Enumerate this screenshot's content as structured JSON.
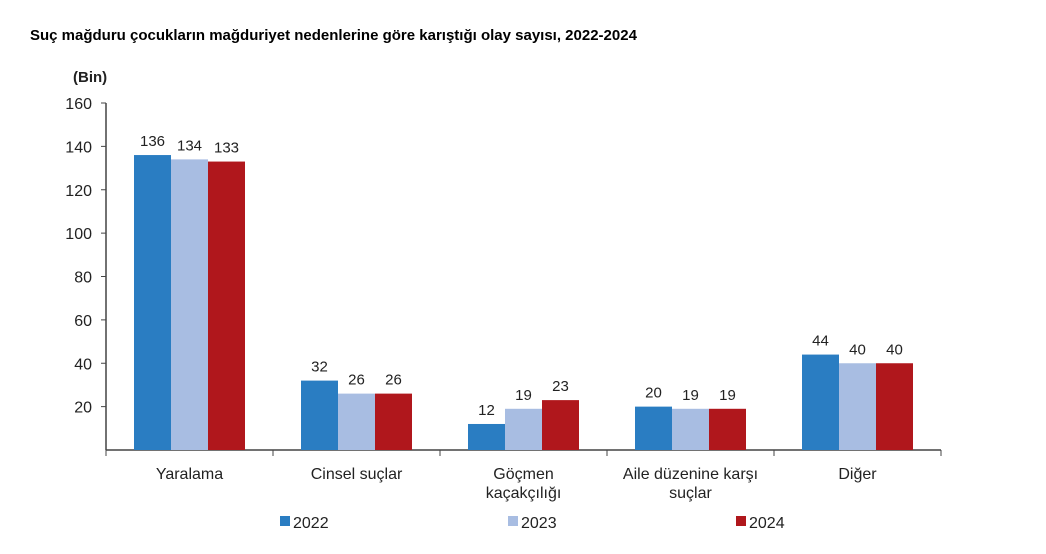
{
  "chart_data": {
    "type": "bar",
    "title": "Suç mağduru çocukların mağduriyet nedenlerine göre karıştığı olay sayısı, 2022-2024",
    "ylabel": "(Bin)",
    "xlabel": "",
    "ylim": [
      0,
      160
    ],
    "yticks": [
      20,
      40,
      60,
      80,
      100,
      120,
      140,
      160
    ],
    "categories": [
      [
        "Yaralama"
      ],
      [
        "Cinsel suçlar"
      ],
      [
        "Göçmen",
        "kaçakçılığı"
      ],
      [
        "Aile düzenine karşı",
        "suçlar"
      ],
      [
        "Diğer"
      ]
    ],
    "series": [
      {
        "name": "2022",
        "color": "#2a7dc2",
        "values": [
          136,
          32,
          12,
          20,
          44
        ]
      },
      {
        "name": "2023",
        "color": "#a8bde2",
        "values": [
          134,
          26,
          19,
          19,
          40
        ]
      },
      {
        "name": "2024",
        "color": "#b0171c",
        "values": [
          133,
          26,
          23,
          19,
          40
        ]
      }
    ],
    "legend_position": "bottom",
    "grid": false
  }
}
